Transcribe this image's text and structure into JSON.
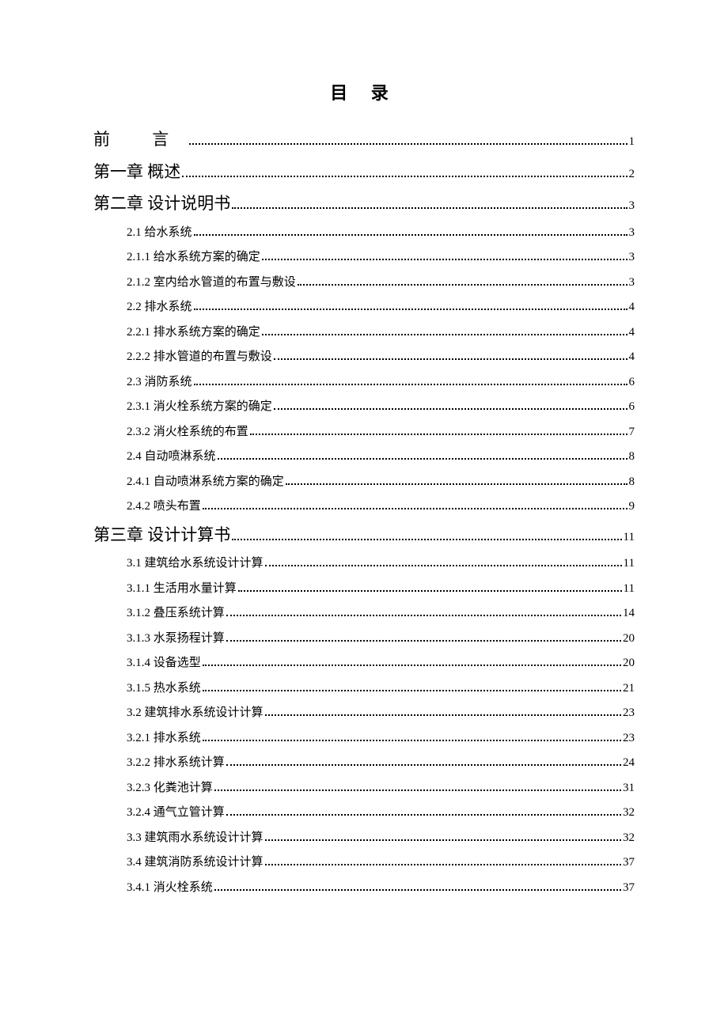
{
  "title": "目 录",
  "entries": [
    {
      "label": "前  言",
      "page": "1",
      "level": 0,
      "extraClass": "preface-label"
    },
    {
      "label": "第一章  概述",
      "page": "2",
      "level": 0
    },
    {
      "label": "第二章  设计说明书",
      "page": "3",
      "level": 0
    },
    {
      "label": "2.1  给水系统",
      "page": "3",
      "level": 1
    },
    {
      "label": "2.1.1  给水系统方案的确定",
      "page": "3",
      "level": 2
    },
    {
      "label": "2.1.2  室内给水管道的布置与敷设",
      "page": "3",
      "level": 2
    },
    {
      "label": "2.2 排水系统",
      "page": "4",
      "level": 1
    },
    {
      "label": "2.2.1 排水系统方案的确定",
      "page": "4",
      "level": 2
    },
    {
      "label": "2.2.2 排水管道的布置与敷设",
      "page": "4",
      "level": 2
    },
    {
      "label": "2.3 消防系统",
      "page": "6",
      "level": 1
    },
    {
      "label": "2.3.1 消火栓系统方案的确定",
      "page": "6",
      "level": 2
    },
    {
      "label": "2.3.2 消火栓系统的布置",
      "page": "7",
      "level": 2
    },
    {
      "label": "2.4 自动喷淋系统",
      "page": "8",
      "level": 1
    },
    {
      "label": "2.4.1 自动喷淋系统方案的确定",
      "page": "8",
      "level": 2
    },
    {
      "label": "2.4.2 喷头布置",
      "page": "9",
      "level": 2
    },
    {
      "label": "第三章  设计计算书",
      "page": "11",
      "level": 0
    },
    {
      "label": "3.1 建筑给水系统设计计算",
      "page": "11",
      "level": 1
    },
    {
      "label": "3.1.1 生活用水量计算",
      "page": "11",
      "level": 2
    },
    {
      "label": "3.1.2 叠压系统计算",
      "page": "14",
      "level": 2
    },
    {
      "label": "3.1.3 水泵扬程计算",
      "page": "20",
      "level": 2
    },
    {
      "label": "3.1.4 设备选型",
      "page": "20",
      "level": 2
    },
    {
      "label": "3.1.5  热水系统",
      "page": "21",
      "level": 2
    },
    {
      "label": "3.2 建筑排水系统设计计算",
      "page": "23",
      "level": 1
    },
    {
      "label": "3.2.1 排水系统",
      "page": "23",
      "level": 2
    },
    {
      "label": "3.2.2 排水系统计算",
      "page": "24",
      "level": 2
    },
    {
      "label": "3.2.3 化粪池计算",
      "page": "31",
      "level": 2
    },
    {
      "label": "3.2.4 通气立管计算",
      "page": "32",
      "level": 2
    },
    {
      "label": "3.3 建筑雨水系统设计计算",
      "page": "32",
      "level": 1
    },
    {
      "label": "3.4 建筑消防系统设计计算",
      "page": "37",
      "level": 1
    },
    {
      "label": "3.4.1 消火栓系统",
      "page": "37",
      "level": 2
    }
  ]
}
